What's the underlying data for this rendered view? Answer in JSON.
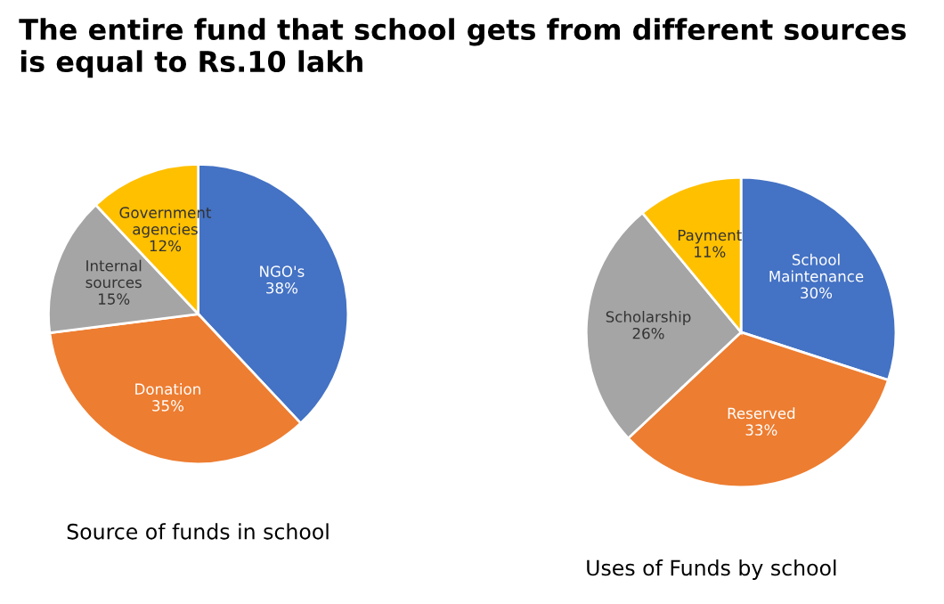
{
  "chart_data": [
    {
      "type": "pie",
      "title": "The entire fund that school gets from different sources is equal to Rs.10 lakh",
      "categories": [
        "NGO's",
        "Donation",
        "Internal sources",
        "Government agencies"
      ],
      "values": [
        38,
        35,
        15,
        12
      ],
      "value_labels": [
        "38%",
        "35%",
        "15%",
        "12%"
      ],
      "colors": [
        "#4472c4",
        "#ed7d31",
        "#a5a5a5",
        "#ffc000"
      ],
      "annotations": [
        "Source of funds in school"
      ]
    },
    {
      "type": "pie",
      "categories": [
        "School Maintenance",
        "Reserved",
        "Scholarship",
        "Payment"
      ],
      "values": [
        30,
        33,
        26,
        11
      ],
      "value_labels": [
        "30%",
        "33%",
        "26%",
        "11%"
      ],
      "colors": [
        "#4472c4",
        "#ed7d31",
        "#a5a5a5",
        "#ffc000"
      ],
      "annotations": [
        "Uses of Funds by school"
      ]
    }
  ]
}
